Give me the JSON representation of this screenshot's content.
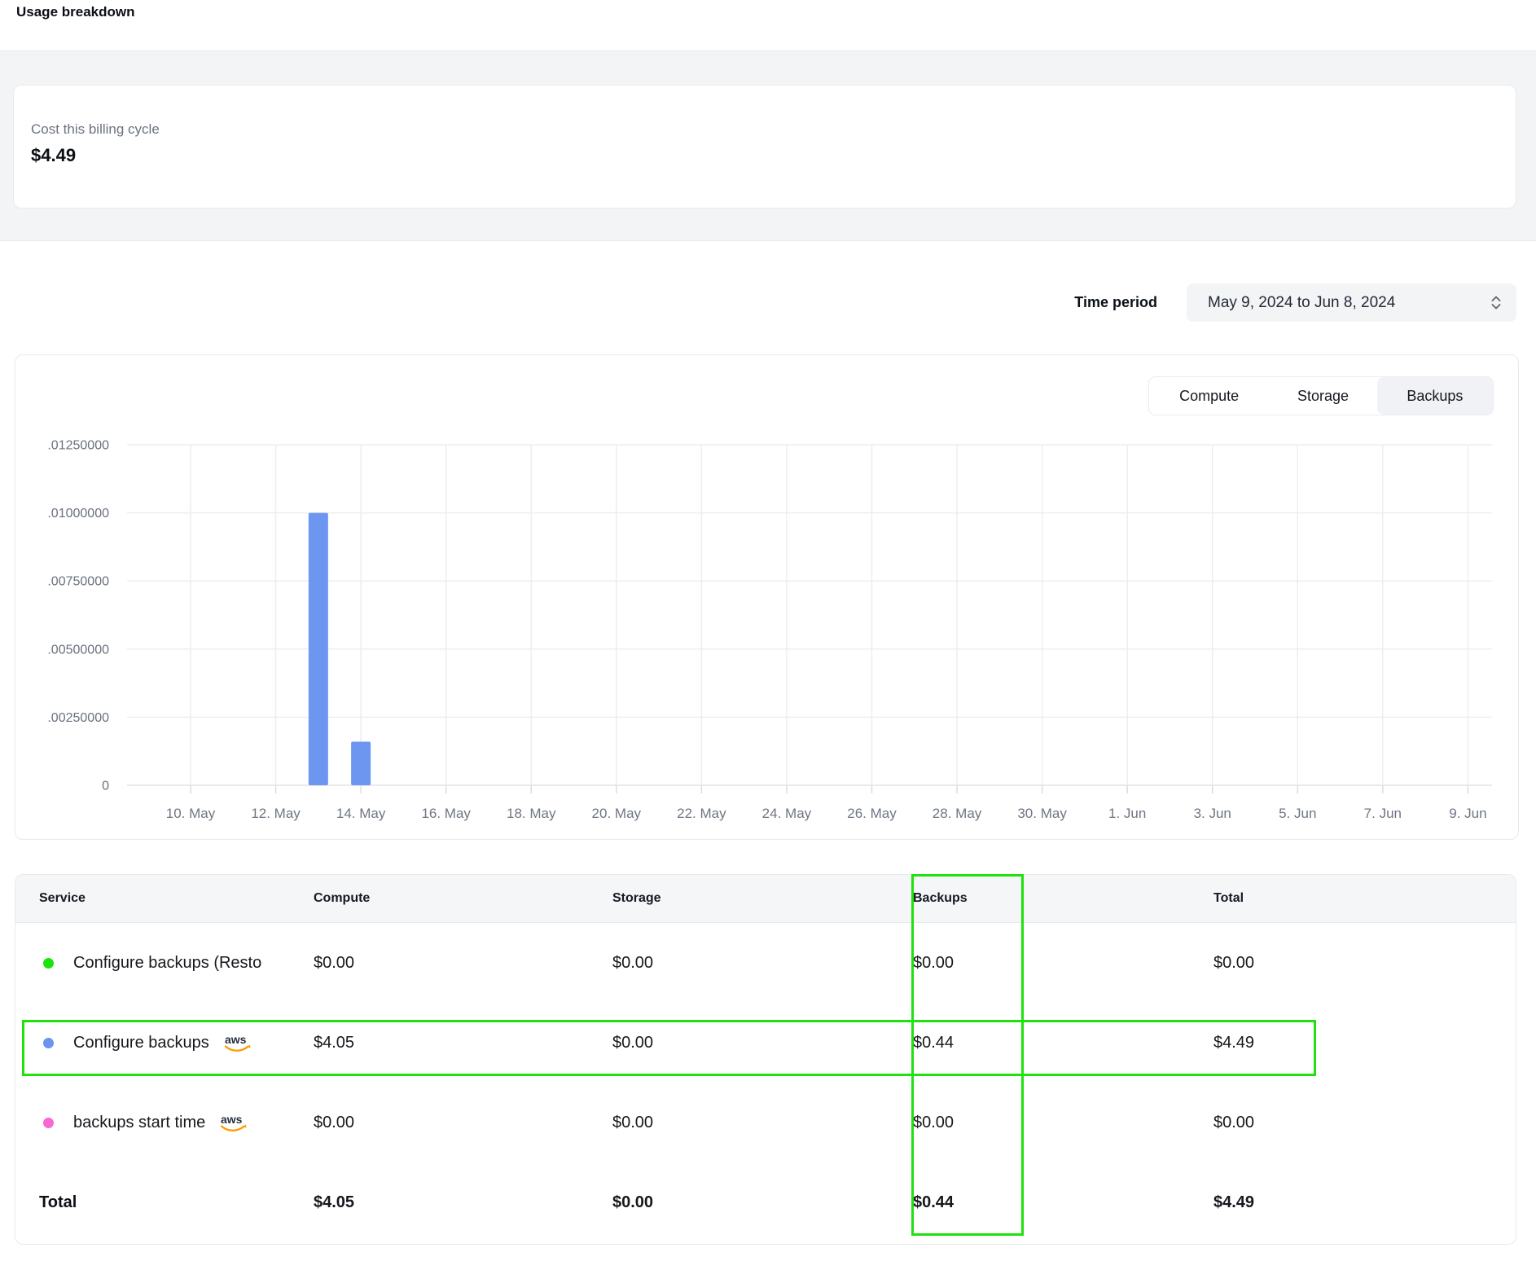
{
  "page_title": "Usage breakdown",
  "summary": {
    "label": "Cost this billing cycle",
    "value": "$4.49"
  },
  "time_period": {
    "label": "Time period",
    "value": "May 9, 2024 to Jun 8, 2024"
  },
  "tabs": {
    "items": [
      {
        "label": "Compute",
        "selected": false
      },
      {
        "label": "Storage",
        "selected": false
      },
      {
        "label": "Backups",
        "selected": true
      }
    ]
  },
  "chart_data": {
    "type": "bar",
    "series_name": "Backups",
    "x_ticks": [
      "10. May",
      "12. May",
      "14. May",
      "16. May",
      "18. May",
      "20. May",
      "22. May",
      "24. May",
      "26. May",
      "28. May",
      "30. May",
      "1. Jun",
      "3. Jun",
      "5. Jun",
      "7. Jun",
      "9. Jun"
    ],
    "x_tick_interval_days": 2,
    "y_ticks": [
      {
        "label": ".01250000",
        "value": 0.0125
      },
      {
        "label": ".01000000",
        "value": 0.01
      },
      {
        "label": ".00750000",
        "value": 0.0075
      },
      {
        "label": ".00500000",
        "value": 0.005
      },
      {
        "label": ".00250000",
        "value": 0.0025
      },
      {
        "label": "0",
        "value": 0
      }
    ],
    "bars": [
      {
        "date": "13. May",
        "days_after_first_tick": 3,
        "value": 0.01
      },
      {
        "date": "14. May",
        "days_after_first_tick": 4,
        "value": 0.0016
      }
    ],
    "ylim": [
      0,
      0.0125
    ],
    "grid": true,
    "legend_position": "none",
    "bar_color": "#6d96f0"
  },
  "table": {
    "columns": [
      "Service",
      "Compute",
      "Storage",
      "Backups",
      "Total"
    ],
    "rows": [
      {
        "service": "Configure backups (Resto",
        "truncated": true,
        "dot_color": "#1be30e",
        "aws_badge": false,
        "values": [
          "$0.00",
          "$0.00",
          "$0.00",
          "$0.00"
        ]
      },
      {
        "service": "Configure backups",
        "truncated": false,
        "dot_color": "#6c93ee",
        "aws_badge": true,
        "values": [
          "$4.05",
          "$0.00",
          "$0.44",
          "$4.49"
        ]
      },
      {
        "service": "backups start time",
        "truncated": false,
        "dot_color": "#f868d4",
        "aws_badge": true,
        "values": [
          "$0.00",
          "$0.00",
          "$0.00",
          "$0.00"
        ]
      }
    ],
    "total_row": {
      "label": "Total",
      "values": [
        "$4.05",
        "$0.00",
        "$0.44",
        "$4.49"
      ]
    }
  },
  "aws_badge": {
    "text": "aws",
    "text_color": "#252f3e",
    "smile_color": "#ff9900"
  },
  "annotations": {
    "highlight_color": "#1fe10d",
    "column_highlight": "Backups column",
    "row_highlight": "Configure backups row"
  }
}
